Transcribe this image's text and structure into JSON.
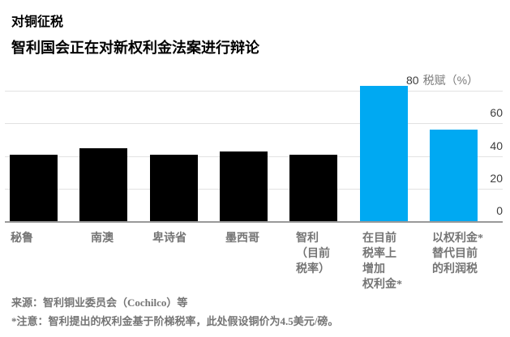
{
  "header": {
    "title": "对铜征税",
    "subtitle": "智利国会正在对新权利金法案进行辩论"
  },
  "chart_data": {
    "type": "bar",
    "title": "对铜征税",
    "subtitle": "智利国会正在对新权利金法案进行辩论",
    "ylabel": "税赋（%）",
    "xlabel": "",
    "categories": [
      "秘鲁",
      "南澳",
      "卑诗省",
      "墨西哥",
      "智利（目前税率）",
      "在目前税率上增加权利金*",
      "以权利金*替代目前的利润税"
    ],
    "category_lines": [
      [
        "秘鲁"
      ],
      [
        "南澳"
      ],
      [
        "卑诗省"
      ],
      [
        "墨西哥"
      ],
      [
        "智利",
        "（目前",
        "税率）"
      ],
      [
        "在目前",
        "税率上",
        "增加",
        "权利金*"
      ],
      [
        "以权利金*",
        "替代目前",
        "的利润税"
      ]
    ],
    "series": [
      {
        "name": "税赋",
        "values": [
          41,
          45,
          41,
          43,
          41,
          83,
          56
        ]
      }
    ],
    "values": [
      41,
      45,
      41,
      43,
      41,
      83,
      56
    ],
    "bar_colors": [
      "#000000",
      "#000000",
      "#000000",
      "#000000",
      "#000000",
      "#00a9f2",
      "#00a9f2"
    ],
    "yticks": [
      0,
      20,
      40,
      60,
      80
    ],
    "ylim": [
      0,
      85
    ],
    "grid": true,
    "y_axis_position": "right",
    "legend": "none"
  },
  "footer": {
    "source": "来源：智利铜业委员会（Cochilco）等",
    "note": "*注意：智利提出的权利金基于阶梯税率，此处假设铜价为4.5美元/磅。"
  },
  "colors": {
    "accent_blue": "#00a9f2",
    "bar_black": "#000000",
    "gridline": "#e2e2e2",
    "baseline": "#999999",
    "label_gray": "#757575",
    "tick_gray": "#3d3d3d",
    "background": "#ffffff"
  }
}
